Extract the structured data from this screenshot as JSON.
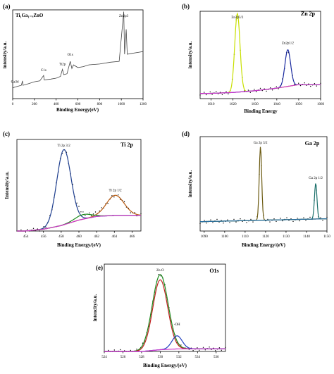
{
  "figure": {
    "panels": [
      {
        "letter": "(a)",
        "title": "Ti₁Ga₁₋ₓZnO",
        "xlabel": "Binding Energy(eV)",
        "ylabel": "intensity/a.u.",
        "xticks": [
          "0",
          "200",
          "400",
          "600",
          "800",
          "1000",
          "1200"
        ],
        "annotations": [
          "Zn2p3",
          "O1s",
          "Ti2p",
          "C1s",
          "Ga3d"
        ]
      },
      {
        "letter": "(b)",
        "title": "Zn 2p",
        "xlabel": "Binding Energy",
        "ylabel": "intensity/a.u.",
        "xticks": [
          "1010",
          "1020",
          "1030",
          "1040",
          "1050",
          "1060"
        ],
        "annotations": [
          "Zn2p3/2",
          "Zn2p1/2"
        ]
      },
      {
        "letter": "(c)",
        "title": "Ti 2p",
        "xlabel": "Binding Energy/(eV)",
        "ylabel": "Intensity/a.u.",
        "xticks": [
          "454",
          "456",
          "458",
          "460",
          "462",
          "464",
          "466"
        ],
        "annotations": [
          "Ti 2p 3/2",
          "Ti 2p 1/2"
        ]
      },
      {
        "letter": "(d)",
        "title": "Ga 2p",
        "xlabel": "Binding Energy/(eV)",
        "ylabel": "intensity/a.u.",
        "xticks": [
          "1090",
          "1100",
          "1110",
          "1120",
          "1130",
          "1140",
          "1150"
        ],
        "annotations": [
          "Ga 2p 3/2",
          "Ga 2p 1/2"
        ]
      },
      {
        "letter": "(e)",
        "title": "O1s",
        "xlabel": "Binding Energy/(eV)",
        "ylabel": "intencity/a.u.",
        "xticks": [
          "524",
          "526",
          "528",
          "530",
          "532",
          "534",
          "536"
        ],
        "annotations": [
          "Zn-O",
          "-OH"
        ]
      }
    ]
  },
  "chart_data": [
    {
      "type": "line",
      "panel": "(a)",
      "title": "Ti₁Ga₁₋ₓZnO",
      "xlabel": "Binding Energy(eV)",
      "ylabel": "intensity/a.u.",
      "xlim": [
        0,
        1200
      ],
      "ylim": [
        0,
        1
      ],
      "survey_points": [
        [
          0,
          0.12
        ],
        [
          20,
          0.13
        ],
        [
          50,
          0.14
        ],
        [
          80,
          0.15
        ],
        [
          90,
          0.2
        ],
        [
          95,
          0.15
        ],
        [
          150,
          0.17
        ],
        [
          200,
          0.19
        ],
        [
          250,
          0.2
        ],
        [
          285,
          0.26
        ],
        [
          290,
          0.21
        ],
        [
          350,
          0.22
        ],
        [
          400,
          0.23
        ],
        [
          440,
          0.25
        ],
        [
          458,
          0.33
        ],
        [
          470,
          0.27
        ],
        [
          500,
          0.28
        ],
        [
          530,
          0.42
        ],
        [
          545,
          0.34
        ],
        [
          560,
          0.38
        ],
        [
          600,
          0.35
        ],
        [
          650,
          0.36
        ],
        [
          700,
          0.38
        ],
        [
          800,
          0.39
        ],
        [
          900,
          0.41
        ],
        [
          980,
          0.42
        ],
        [
          1022,
          0.98
        ],
        [
          1030,
          0.5
        ],
        [
          1045,
          0.78
        ],
        [
          1055,
          0.5
        ],
        [
          1100,
          0.51
        ],
        [
          1150,
          0.52
        ],
        [
          1200,
          0.53
        ]
      ],
      "peak_labels": [
        {
          "label": "Zn2p3",
          "x": 1022
        },
        {
          "label": "O1s",
          "x": 530
        },
        {
          "label": "Ti2p",
          "x": 458
        },
        {
          "label": "C1s",
          "x": 285
        },
        {
          "label": "Ga3d",
          "x": 20
        }
      ],
      "color": "#444444"
    },
    {
      "type": "line",
      "panel": "(b)",
      "title": "Zn 2p",
      "xlabel": "Binding Energy",
      "ylabel": "intensity/a.u.",
      "xlim": [
        1005,
        1060
      ],
      "ylim": [
        0,
        1
      ],
      "series": [
        {
          "name": "Zn2p3/2 fit",
          "color": "#c8e000",
          "center": 1022,
          "sigma": 1.2,
          "amp": 0.9
        },
        {
          "name": "Zn2p1/2 fit",
          "color": "#1a2aa0",
          "center": 1045,
          "sigma": 1.3,
          "amp": 0.42
        },
        {
          "name": "background",
          "color": "#cc33cc",
          "points": [
            [
              1010,
              0.06
            ],
            [
              1020,
              0.07
            ],
            [
              1030,
              0.09
            ],
            [
              1040,
              0.12
            ],
            [
              1050,
              0.16
            ]
          ]
        }
      ],
      "peak_labels": [
        {
          "label": "Zn2p3/2",
          "x": 1022
        },
        {
          "label": "Zn2p1/2",
          "x": 1045
        }
      ]
    },
    {
      "type": "line",
      "panel": "(c)",
      "title": "Ti 2p",
      "xlabel": "Binding Energy/(eV)",
      "ylabel": "Intensity/a.u.",
      "xlim": [
        453,
        467
      ],
      "ylim": [
        0,
        1
      ],
      "series": [
        {
          "name": "Ti 2p 3/2 fit",
          "color": "#1f3f8f",
          "center": 458.3,
          "sigma": 0.8,
          "amp": 0.82
        },
        {
          "name": "Ti 2p 1/2 fit",
          "color": "#b85a10",
          "center": 464.1,
          "sigma": 1.0,
          "amp": 0.22
        },
        {
          "name": "shoulder fit",
          "color": "#1a8a1a",
          "center": 460.5,
          "sigma": 0.9,
          "amp": 0.05
        },
        {
          "name": "background",
          "color": "#cc33cc",
          "points": [
            [
              454,
              0.0
            ],
            [
              456,
              0.02
            ],
            [
              458,
              0.06
            ],
            [
              460,
              0.12
            ],
            [
              462,
              0.16
            ],
            [
              464,
              0.17
            ],
            [
              466,
              0.17
            ]
          ]
        }
      ],
      "peak_labels": [
        {
          "label": "Ti 2p 3/2",
          "x": 458.3
        },
        {
          "label": "Ti 2p 1/2",
          "x": 464.1
        }
      ]
    },
    {
      "type": "line",
      "panel": "(d)",
      "title": "Ga 2p",
      "xlabel": "Binding Energy/(eV)",
      "ylabel": "intensity/a.u.",
      "xlim": [
        1088,
        1150
      ],
      "ylim": [
        0,
        1
      ],
      "series": [
        {
          "name": "Ga 2p 3/2 fit",
          "color": "#6b5a10",
          "center": 1117.5,
          "sigma": 0.6,
          "amp": 0.78
        },
        {
          "name": "Ga 2p 1/2 fit",
          "color": "#1a6f6a",
          "center": 1144.5,
          "sigma": 0.6,
          "amp": 0.38
        },
        {
          "name": "background",
          "color": "#2a6fa0",
          "points": [
            [
              1090,
              0.1
            ],
            [
              1110,
              0.11
            ],
            [
              1130,
              0.12
            ],
            [
              1150,
              0.13
            ]
          ]
        }
      ],
      "peak_labels": [
        {
          "label": "Ga 2p 3/2",
          "x": 1117.5
        },
        {
          "label": "Ga 2p 1/2",
          "x": 1144.5
        }
      ]
    },
    {
      "type": "line",
      "panel": "(e)",
      "title": "O1s",
      "xlabel": "Binding Energy/(eV)",
      "ylabel": "intencity/a.u.",
      "xlim": [
        524,
        537
      ],
      "ylim": [
        0,
        1
      ],
      "series": [
        {
          "name": "envelope",
          "color": "#1a8a1a",
          "center": 530.0,
          "sigma": 0.85,
          "amp": 0.86
        },
        {
          "name": "Zn-O component",
          "color": "#c02020",
          "center": 530.0,
          "sigma": 0.8,
          "amp": 0.8
        },
        {
          "name": "-OH component",
          "color": "#2040c0",
          "center": 531.8,
          "sigma": 0.55,
          "amp": 0.15
        },
        {
          "name": "background",
          "color": "#cc33cc",
          "points": [
            [
              524,
              0.0
            ],
            [
              528,
              0.0
            ],
            [
              530,
              0.02
            ],
            [
              532,
              0.03
            ],
            [
              537,
              0.03
            ]
          ]
        }
      ],
      "peak_labels": [
        {
          "label": "Zn-O",
          "x": 530.0
        },
        {
          "label": "-OH",
          "x": 531.8
        }
      ]
    }
  ]
}
